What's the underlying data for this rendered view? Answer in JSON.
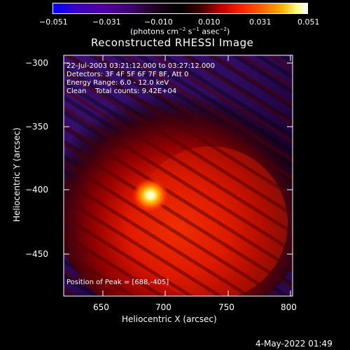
{
  "title": "Reconstructed RHESSI Image",
  "colorbar": {
    "ticks": [
      "−0.051",
      "−0.031",
      "−0.010",
      "0.010",
      "0.031",
      "0.051"
    ],
    "units_text": "(photons cm",
    "units_exp1": "−2",
    "units_mid": " s",
    "units_exp2": "−1",
    "units_tail": " asec",
    "units_exp3": "−2",
    "units_close": ")"
  },
  "info": {
    "line1": "22-Jul-2003 03:21:12.000 to 03:27:12.000",
    "line2": "Detectors: 3F 4F 5F 6F 7F 8F, Att 0",
    "line3": "Energy Range: 6.0 - 12.0 keV",
    "line4": "Clean    Total counts: 9.42E+04"
  },
  "peak_text": "Position of Peak = [688,-405]",
  "axes": {
    "xlabel": "Heliocentric X (arcsec)",
    "ylabel": "Heliocentric Y (arcsec)",
    "xticks": [
      "650",
      "700",
      "750",
      "800"
    ],
    "yticks": [
      "−300",
      "−350",
      "−400",
      "−450"
    ]
  },
  "date_stamp": "4-May-2022 01:49"
}
